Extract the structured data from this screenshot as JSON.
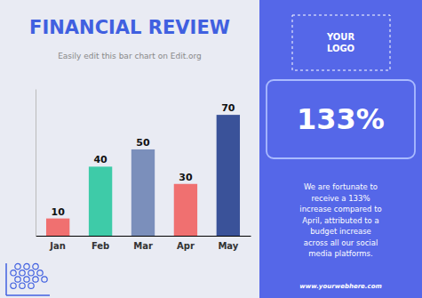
{
  "chart_data": {
    "type": "bar",
    "title": "FINANCIAL REVIEW",
    "subtitle": "Easily edit this bar chart on Edit.org",
    "categories": [
      "Jan",
      "Feb",
      "Mar",
      "Apr",
      "May"
    ],
    "values": [
      10,
      40,
      50,
      30,
      70
    ],
    "colors": [
      "#F07070",
      "#3ECBA8",
      "#7B8FBB",
      "#F07070",
      "#3A5299"
    ],
    "ylim": [
      0,
      85
    ],
    "tick_labels": "x",
    "data_labels": true,
    "grid": false,
    "annotations": [
      "YOUR\nLOGO",
      "133%",
      "We are fortunate to\nreceive a 133%\nincrease compared to\nApril, attributed to a\nbudget increase\nacross all our social\nmedia platforms.",
      "www.yourwebhere.com"
    ]
  }
}
